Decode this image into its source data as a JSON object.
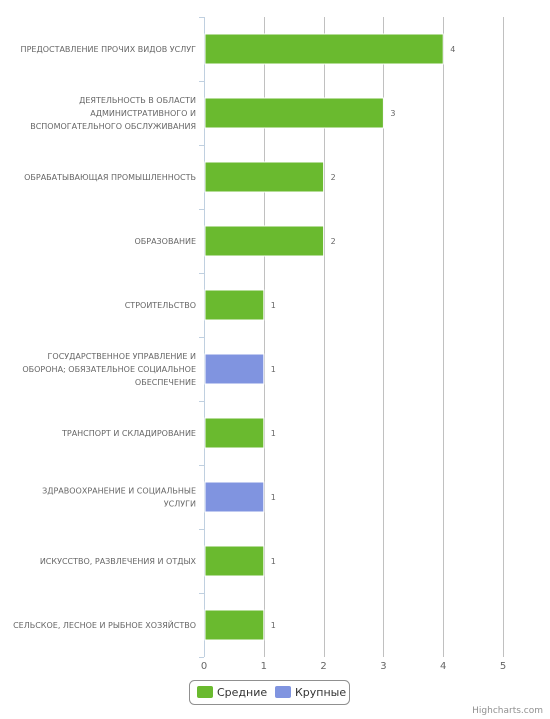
{
  "chart_data": {
    "type": "bar",
    "orientation": "horizontal",
    "categories": [
      "ПРЕДОСТАВЛЕНИЕ ПРОЧИХ ВИДОВ УСЛУГ",
      "ДЕЯТЕЛЬНОСТЬ В ОБЛАСТИ АДМИНИСТРАТИВНОГО И ВСПОМОГАТЕЛЬНОГО ОБСЛУЖИВАНИЯ",
      "ОБРАБАТЫВАЮЩАЯ ПРОМЫШЛЕННОСТЬ",
      "ОБРАЗОВАНИЕ",
      "СТРОИТЕЛЬСТВО",
      "ГОСУДАРСТВЕННОЕ УПРАВЛЕНИЕ И ОБОРОНА; ОБЯЗАТЕЛЬНОЕ СОЦИАЛЬНОЕ ОБЕСПЕЧЕНИЕ",
      "ТРАНСПОРТ И СКЛАДИРОВАНИЕ",
      "ЗДРАВООХРАНЕНИЕ И СОЦИАЛЬНЫЕ УСЛУГИ",
      "ИСКУССТВО, РАЗВЛЕЧЕНИЯ И ОТДЫХ",
      "СЕЛЬСКОЕ, ЛЕСНОЕ И РЫБНОЕ ХОЗЯЙСТВО"
    ],
    "category_lines": [
      [
        "ПРЕДОСТАВЛЕНИЕ ПРОЧИХ ВИДОВ УСЛУГ"
      ],
      [
        "ДЕЯТЕЛЬНОСТЬ В ОБЛАСТИ",
        "АДМИНИСТРАТИВНОГО И",
        "ВСПОМОГАТЕЛЬНОГО ОБСЛУЖИВАНИЯ"
      ],
      [
        "ОБРАБАТЫВАЮЩАЯ ПРОМЫШЛЕННОСТЬ"
      ],
      [
        "ОБРАЗОВАНИЕ"
      ],
      [
        "СТРОИТЕЛЬСТВО"
      ],
      [
        "ГОСУДАРСТВЕННОЕ УПРАВЛЕНИЕ И",
        "ОБОРОНА; ОБЯЗАТЕЛЬНОЕ СОЦИАЛЬНОЕ",
        "ОБЕСПЕЧЕНИЕ"
      ],
      [
        "ТРАНСПОРТ И СКЛАДИРОВАНИЕ"
      ],
      [
        "ЗДРАВООХРАНЕНИЕ И СОЦИАЛЬНЫЕ",
        "УСЛУГИ"
      ],
      [
        "ИСКУССТВО, РАЗВЛЕЧЕНИЯ И ОТДЫХ"
      ],
      [
        "СЕЛЬСКОЕ, ЛЕСНОЕ И РЫБНОЕ ХОЗЯЙСТВО"
      ]
    ],
    "values": [
      4,
      3,
      2,
      2,
      1,
      1,
      1,
      1,
      1,
      1
    ],
    "point_series": [
      "Средние",
      "Средние",
      "Средние",
      "Средние",
      "Средние",
      "Крупные",
      "Средние",
      "Крупные",
      "Средние",
      "Средние"
    ],
    "series": [
      {
        "name": "Средние",
        "color": "#6aba2f"
      },
      {
        "name": "Крупные",
        "color": "#8094e0"
      }
    ],
    "xlim": [
      0,
      5
    ],
    "xticks": [
      0,
      1,
      2,
      3,
      4,
      5
    ],
    "grid": true,
    "legend": "bottom-center",
    "title": "",
    "xlabel": "",
    "ylabel": ""
  },
  "credits": "Highcharts.com",
  "colors": {
    "grid": "#c0c0c0",
    "axis": "#c0d0e0",
    "text": "#666666",
    "legend_border": "#909090"
  }
}
